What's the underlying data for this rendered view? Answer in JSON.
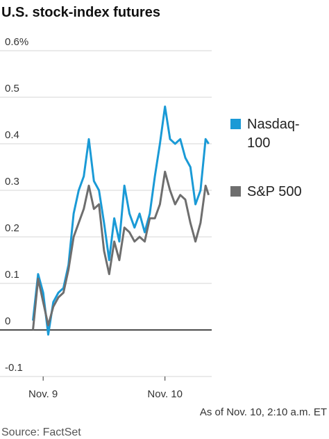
{
  "chart_data": {
    "type": "line",
    "title": "U.S. stock-index futures",
    "note": "As of Nov. 10, 2:10 a.m. ET",
    "source": "Source: FactSet",
    "x": [
      -2,
      -1,
      0,
      1,
      2,
      3,
      4,
      5,
      6,
      7,
      8,
      9,
      10,
      11,
      12,
      13,
      14,
      15,
      16,
      17,
      18,
      19,
      20,
      21,
      22,
      23,
      24,
      25,
      26,
      27,
      28,
      29,
      30,
      31,
      32,
      32.6
    ],
    "series": [
      {
        "name": "Nasdaq-100",
        "color": "#1a9ad6",
        "values": [
          0.02,
          0.12,
          0.08,
          -0.01,
          0.06,
          0.08,
          0.09,
          0.14,
          0.25,
          0.3,
          0.33,
          0.41,
          0.32,
          0.3,
          0.23,
          0.15,
          0.24,
          0.19,
          0.31,
          0.25,
          0.22,
          0.25,
          0.21,
          0.25,
          0.33,
          0.4,
          0.48,
          0.41,
          0.4,
          0.41,
          0.37,
          0.35,
          0.27,
          0.3,
          0.41,
          0.4
        ]
      },
      {
        "name": "S&P 500",
        "color": "#6e6e6e",
        "values": [
          0.0,
          0.11,
          0.06,
          0.01,
          0.05,
          0.07,
          0.08,
          0.13,
          0.2,
          0.23,
          0.26,
          0.31,
          0.26,
          0.27,
          0.17,
          0.12,
          0.19,
          0.15,
          0.22,
          0.21,
          0.19,
          0.2,
          0.19,
          0.24,
          0.24,
          0.27,
          0.34,
          0.3,
          0.27,
          0.29,
          0.28,
          0.23,
          0.19,
          0.23,
          0.31,
          0.29
        ]
      }
    ],
    "xlim": [
      -8.5,
      33.2
    ],
    "xticks": [
      {
        "value": 0,
        "label": "Nov. 9"
      },
      {
        "value": 24,
        "label": "Nov. 10"
      }
    ],
    "ylim": [
      -0.1,
      0.6
    ],
    "yticks": [
      -0.1,
      0,
      0.1,
      0.2,
      0.3,
      0.4,
      0.5,
      {
        "value": 0.6,
        "label": "0.6%"
      }
    ],
    "grid": true,
    "legend": "right"
  }
}
